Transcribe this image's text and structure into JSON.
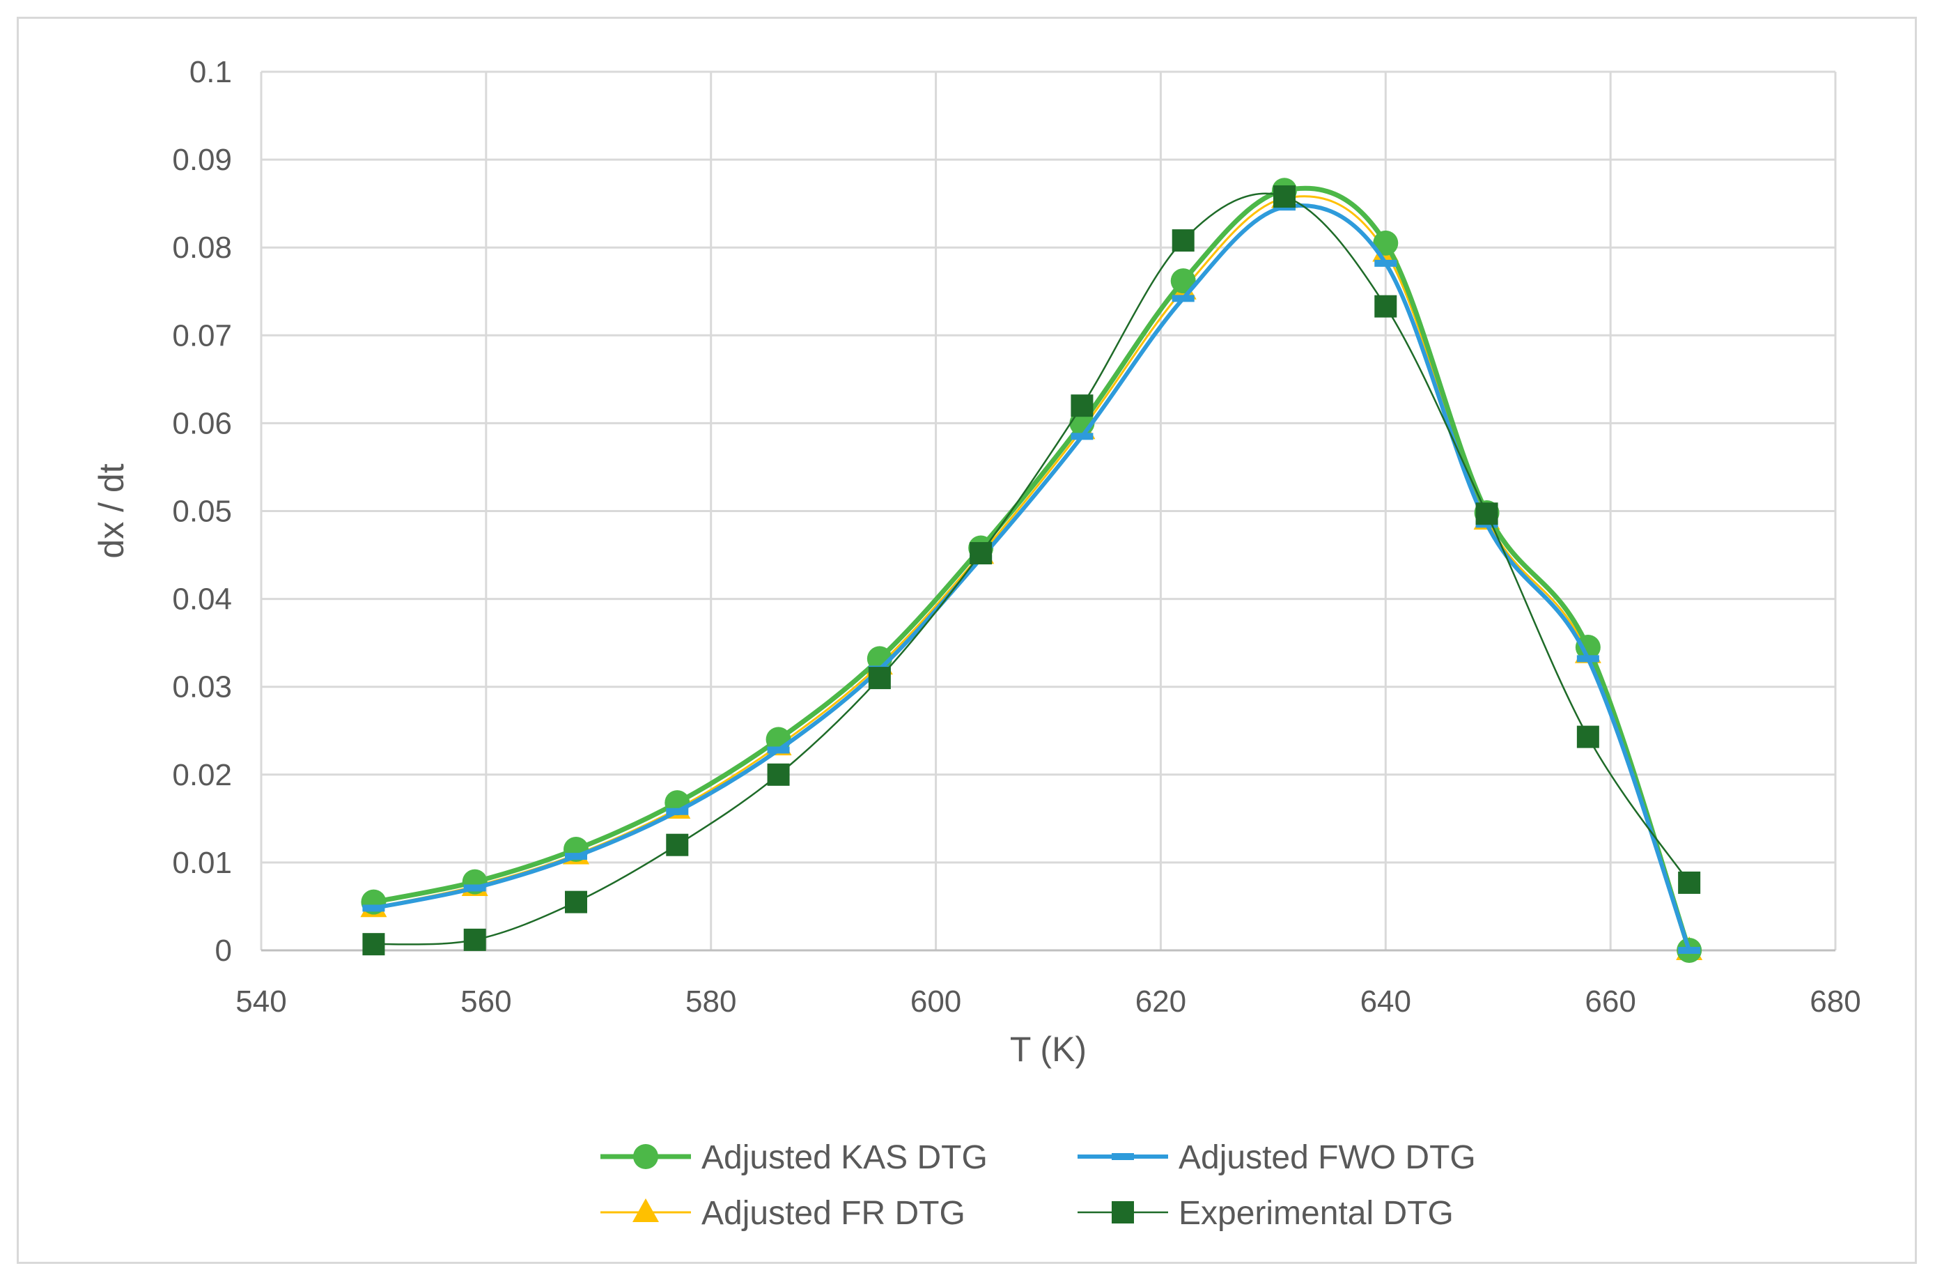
{
  "chart_data": {
    "type": "line",
    "title": "",
    "xlabel": "T (K)",
    "ylabel": "dx / dt",
    "xlim": [
      540,
      680
    ],
    "ylim": [
      0,
      0.1
    ],
    "xticks": [
      "540",
      "560",
      "580",
      "600",
      "620",
      "640",
      "660",
      "680"
    ],
    "yticks": [
      "0",
      "0.01",
      "0.02",
      "0.03",
      "0.04",
      "0.05",
      "0.06",
      "0.07",
      "0.08",
      "0.09",
      "0.1"
    ],
    "grid": true,
    "legend_position": "bottom",
    "x": [
      550,
      559,
      568,
      577,
      586,
      595,
      604,
      613,
      622,
      631,
      640,
      649,
      658,
      667
    ],
    "series": [
      {
        "name": "Adjusted KAS DTG",
        "color": "#4cb848",
        "marker": "circle",
        "values": [
          0.0055,
          0.0078,
          0.0115,
          0.0168,
          0.024,
          0.0332,
          0.0458,
          0.06,
          0.0762,
          0.0865,
          0.0805,
          0.0498,
          0.0345,
          0.0
        ]
      },
      {
        "name": "Adjusted FWO DTG",
        "color": "#2e9bdb",
        "marker": "dash",
        "values": [
          0.0048,
          0.0071,
          0.0107,
          0.0158,
          0.0228,
          0.032,
          0.0446,
          0.0585,
          0.0742,
          0.0846,
          0.0782,
          0.0485,
          0.0332,
          0.0
        ]
      },
      {
        "name": "Adjusted FR DTG",
        "color": "#ffc000",
        "marker": "triangle",
        "values": [
          0.0049,
          0.0073,
          0.0109,
          0.0161,
          0.0233,
          0.0325,
          0.0451,
          0.0593,
          0.0752,
          0.0856,
          0.0795,
          0.049,
          0.0338,
          0.0
        ]
      },
      {
        "name": "Experimental DTG",
        "color": "#1e6b28",
        "marker": "square",
        "values": [
          0.0007,
          0.0012,
          0.0055,
          0.012,
          0.02,
          0.031,
          0.0452,
          0.062,
          0.0808,
          0.0858,
          0.0733,
          0.0497,
          0.0243,
          0.0077
        ]
      }
    ]
  }
}
